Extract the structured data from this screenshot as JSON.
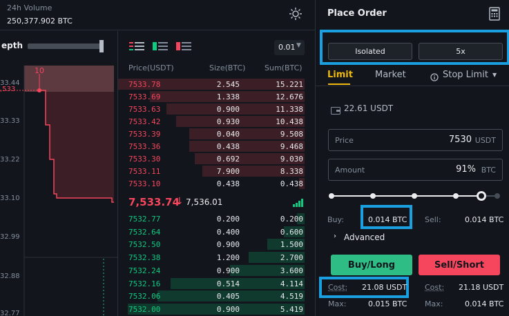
{
  "header": {
    "volume_label": "24h Volume",
    "volume_value": "250,377.902 BTC"
  },
  "depth": {
    "label": "epth",
    "marker": "10",
    "price_marker": ",533",
    "y_ticks": [
      "33.44",
      "33.33",
      "33.22",
      "33.10",
      "32.99",
      "32.88",
      "32.77"
    ]
  },
  "orderbook": {
    "precision": "0.01",
    "columns": {
      "price": "Price(USDT)",
      "size": "Size(BTC)",
      "sum": "Sum(BTC)"
    },
    "asks": [
      {
        "price": "7533.78",
        "size": "2.545",
        "sum": "15.221",
        "depth": 1.0
      },
      {
        "price": "7533.69",
        "size": "1.338",
        "sum": "12.676",
        "depth": 0.83
      },
      {
        "price": "7533.63",
        "size": "0.900",
        "sum": "11.338",
        "depth": 0.74
      },
      {
        "price": "7533.42",
        "size": "0.930",
        "sum": "10.438",
        "depth": 0.69
      },
      {
        "price": "7533.39",
        "size": "0.040",
        "sum": "9.508",
        "depth": 0.62
      },
      {
        "price": "7533.36",
        "size": "0.438",
        "sum": "9.468",
        "depth": 0.62
      },
      {
        "price": "7533.30",
        "size": "0.692",
        "sum": "9.030",
        "depth": 0.59
      },
      {
        "price": "7533.11",
        "size": "7.900",
        "sum": "8.338",
        "depth": 0.55
      },
      {
        "price": "7533.10",
        "size": "0.438",
        "sum": "0.438",
        "depth": 0.03
      }
    ],
    "last_price": "7,533.74",
    "arrow": "↓",
    "mark_price": "7,536.01",
    "bids": [
      {
        "price": "7532.77",
        "size": "0.200",
        "sum": "0.200",
        "depth": 0.04
      },
      {
        "price": "7532.64",
        "size": "0.400",
        "sum": "0.600",
        "depth": 0.11
      },
      {
        "price": "7532.50",
        "size": "0.900",
        "sum": "1.500",
        "depth": 0.2
      },
      {
        "price": "7532.38",
        "size": "1.200",
        "sum": "2.700",
        "depth": 0.3
      },
      {
        "price": "7532.24",
        "size": "0.900",
        "sum": "3.600",
        "depth": 0.4
      },
      {
        "price": "7532.16",
        "size": "0.514",
        "sum": "4.114",
        "depth": 0.72
      },
      {
        "price": "7532.06",
        "size": "0.405",
        "sum": "4.519",
        "depth": 0.79
      },
      {
        "price": "7532.00",
        "size": "0.900",
        "sum": "5.419",
        "depth": 0.95
      }
    ]
  },
  "order": {
    "title": "Place Order",
    "margin_mode": "Isolated",
    "leverage": "5x",
    "tabs": [
      "Limit",
      "Market",
      "Stop Limit"
    ],
    "balance": "22.61 USDT",
    "price_label": "Price",
    "price_value": "7530",
    "price_unit": "USDT",
    "amount_label": "Amount",
    "amount_value": "91%",
    "amount_unit": "BTC",
    "slider_percent": 91,
    "buy_label": "Buy:",
    "buy_value": "0.014 BTC",
    "sell_label": "Sell:",
    "sell_value": "0.014 BTC",
    "advanced": "Advanced",
    "buy_button": "Buy/Long",
    "sell_button": "Sell/Short",
    "cost_label": "Cost:",
    "cost_buy": "21.08 USDT",
    "cost_sell": "21.18 USDT",
    "max_label": "Max:",
    "max_buy": "0.015 BTC",
    "max_sell": "0.014 BTC"
  },
  "colors": {
    "ask": "#f6465d",
    "bid": "#0ecb81",
    "accent": "#f0b90b",
    "highlight": "#1a9fe0"
  }
}
